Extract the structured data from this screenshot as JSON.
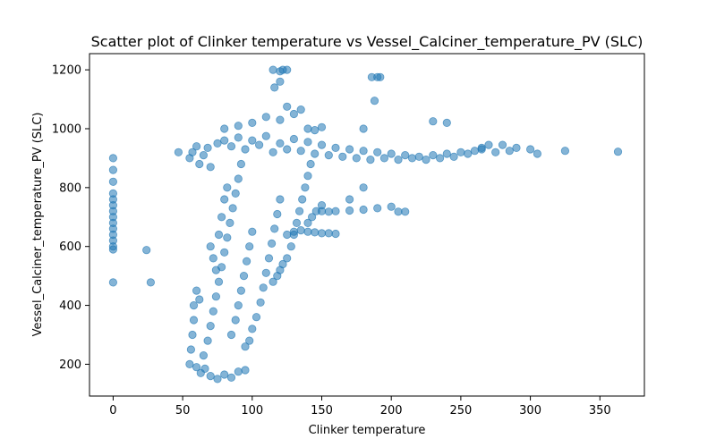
{
  "chart_data": {
    "type": "scatter",
    "title": "Scatter plot of Clinker temperature vs Vessel_Calciner_temperature_PV (SLC)",
    "xlabel": "Clinker temperature",
    "ylabel": "Vessel_Calciner_temperature_PV (SLC)",
    "xlim": [
      -17,
      382
    ],
    "ylim": [
      92,
      1255
    ],
    "xticks": [
      0,
      50,
      100,
      150,
      200,
      250,
      300,
      350
    ],
    "yticks": [
      200,
      400,
      600,
      800,
      1000,
      1200
    ],
    "grid": false,
    "marker_color": "#1f77b4",
    "marker_alpha": 0.55,
    "series": [
      {
        "values": [
          [
            0,
            478
          ],
          [
            0,
            590
          ],
          [
            0,
            600
          ],
          [
            0,
            620
          ],
          [
            0,
            640
          ],
          [
            0,
            660
          ],
          [
            0,
            680
          ],
          [
            0,
            700
          ],
          [
            0,
            720
          ],
          [
            0,
            740
          ],
          [
            0,
            760
          ],
          [
            0,
            780
          ],
          [
            0,
            820
          ],
          [
            0,
            860
          ],
          [
            0,
            900
          ],
          [
            24,
            588
          ],
          [
            27,
            478
          ],
          [
            47,
            920
          ],
          [
            55,
            200
          ],
          [
            56,
            250
          ],
          [
            57,
            300
          ],
          [
            58,
            350
          ],
          [
            58,
            400
          ],
          [
            60,
            450
          ],
          [
            62,
            420
          ],
          [
            55,
            900
          ],
          [
            57,
            920
          ],
          [
            60,
            940
          ],
          [
            62,
            880
          ],
          [
            65,
            910
          ],
          [
            68,
            935
          ],
          [
            70,
            870
          ],
          [
            60,
            190
          ],
          [
            63,
            170
          ],
          [
            66,
            185
          ],
          [
            70,
            160
          ],
          [
            75,
            150
          ],
          [
            80,
            165
          ],
          [
            85,
            155
          ],
          [
            90,
            175
          ],
          [
            95,
            180
          ],
          [
            65,
            230
          ],
          [
            68,
            280
          ],
          [
            70,
            330
          ],
          [
            72,
            380
          ],
          [
            74,
            430
          ],
          [
            76,
            480
          ],
          [
            78,
            530
          ],
          [
            80,
            580
          ],
          [
            82,
            630
          ],
          [
            84,
            680
          ],
          [
            86,
            730
          ],
          [
            88,
            780
          ],
          [
            90,
            830
          ],
          [
            92,
            880
          ],
          [
            70,
            600
          ],
          [
            72,
            560
          ],
          [
            74,
            520
          ],
          [
            76,
            640
          ],
          [
            78,
            700
          ],
          [
            80,
            760
          ],
          [
            82,
            800
          ],
          [
            85,
            300
          ],
          [
            88,
            350
          ],
          [
            90,
            400
          ],
          [
            92,
            450
          ],
          [
            94,
            500
          ],
          [
            96,
            550
          ],
          [
            98,
            600
          ],
          [
            100,
            650
          ],
          [
            95,
            260
          ],
          [
            98,
            280
          ],
          [
            100,
            320
          ],
          [
            103,
            360
          ],
          [
            106,
            410
          ],
          [
            108,
            460
          ],
          [
            110,
            510
          ],
          [
            112,
            560
          ],
          [
            114,
            610
          ],
          [
            116,
            660
          ],
          [
            118,
            710
          ],
          [
            120,
            760
          ],
          [
            115,
            480
          ],
          [
            118,
            500
          ],
          [
            120,
            520
          ],
          [
            122,
            540
          ],
          [
            125,
            560
          ],
          [
            128,
            600
          ],
          [
            130,
            640
          ],
          [
            132,
            680
          ],
          [
            134,
            720
          ],
          [
            136,
            760
          ],
          [
            138,
            800
          ],
          [
            140,
            840
          ],
          [
            142,
            880
          ],
          [
            125,
            640
          ],
          [
            130,
            650
          ],
          [
            135,
            655
          ],
          [
            140,
            650
          ],
          [
            145,
            648
          ],
          [
            150,
            645
          ],
          [
            155,
            645
          ],
          [
            160,
            643
          ],
          [
            140,
            680
          ],
          [
            143,
            700
          ],
          [
            146,
            720
          ],
          [
            150,
            740
          ],
          [
            150,
            720
          ],
          [
            155,
            718
          ],
          [
            160,
            720
          ],
          [
            170,
            722
          ],
          [
            180,
            725
          ],
          [
            190,
            730
          ],
          [
            200,
            735
          ],
          [
            205,
            718
          ],
          [
            210,
            718
          ],
          [
            170,
            760
          ],
          [
            180,
            800
          ],
          [
            75,
            950
          ],
          [
            80,
            960
          ],
          [
            85,
            940
          ],
          [
            90,
            970
          ],
          [
            95,
            930
          ],
          [
            100,
            960
          ],
          [
            105,
            945
          ],
          [
            110,
            975
          ],
          [
            115,
            920
          ],
          [
            120,
            950
          ],
          [
            125,
            930
          ],
          [
            130,
            965
          ],
          [
            135,
            925
          ],
          [
            140,
            955
          ],
          [
            145,
            915
          ],
          [
            150,
            945
          ],
          [
            155,
            910
          ],
          [
            160,
            935
          ],
          [
            165,
            905
          ],
          [
            170,
            930
          ],
          [
            175,
            900
          ],
          [
            180,
            925
          ],
          [
            185,
            895
          ],
          [
            190,
            920
          ],
          [
            195,
            900
          ],
          [
            200,
            915
          ],
          [
            205,
            895
          ],
          [
            210,
            910
          ],
          [
            215,
            900
          ],
          [
            220,
            905
          ],
          [
            225,
            895
          ],
          [
            230,
            910
          ],
          [
            235,
            900
          ],
          [
            240,
            915
          ],
          [
            245,
            905
          ],
          [
            250,
            920
          ],
          [
            255,
            915
          ],
          [
            260,
            925
          ],
          [
            265,
            930
          ],
          [
            80,
            1000
          ],
          [
            90,
            1010
          ],
          [
            100,
            1020
          ],
          [
            110,
            1040
          ],
          [
            120,
            1030
          ],
          [
            125,
            1075
          ],
          [
            130,
            1050
          ],
          [
            135,
            1065
          ],
          [
            140,
            1000
          ],
          [
            145,
            995
          ],
          [
            150,
            1005
          ],
          [
            115,
            1200
          ],
          [
            120,
            1195
          ],
          [
            122,
            1200
          ],
          [
            125,
            1200
          ],
          [
            116,
            1140
          ],
          [
            120,
            1160
          ],
          [
            186,
            1175
          ],
          [
            190,
            1175
          ],
          [
            192,
            1175
          ],
          [
            188,
            1095
          ],
          [
            180,
            1000
          ],
          [
            230,
            1025
          ],
          [
            240,
            1020
          ],
          [
            265,
            935
          ],
          [
            270,
            945
          ],
          [
            275,
            920
          ],
          [
            280,
            945
          ],
          [
            285,
            925
          ],
          [
            290,
            935
          ],
          [
            300,
            930
          ],
          [
            305,
            915
          ],
          [
            325,
            925
          ],
          [
            363,
            922
          ]
        ]
      }
    ]
  }
}
